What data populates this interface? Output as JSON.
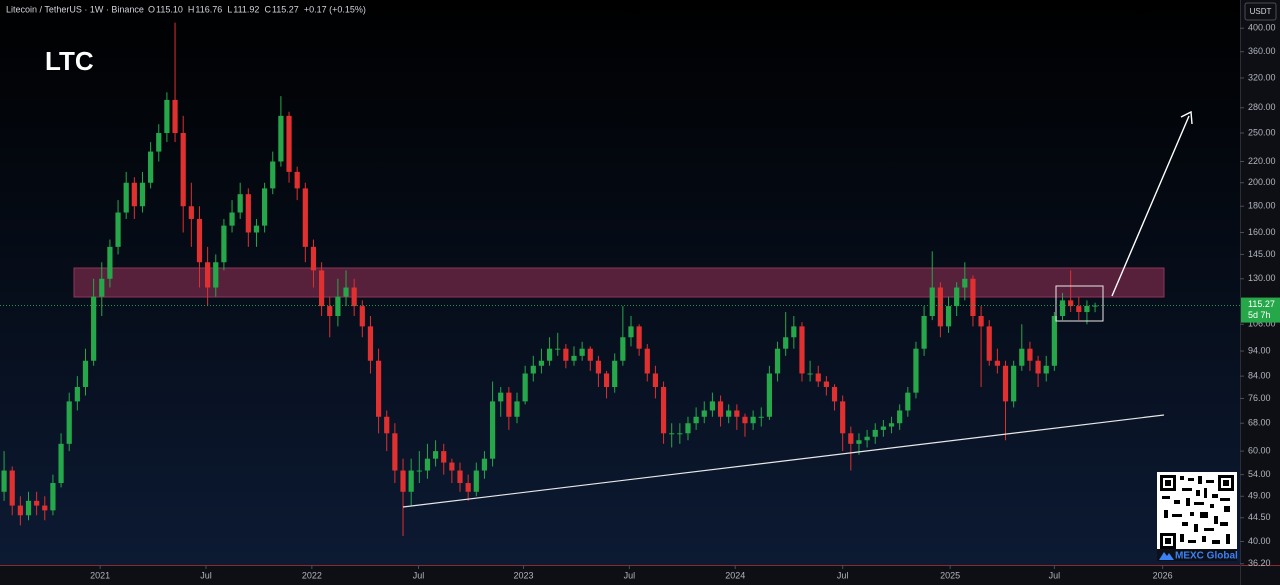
{
  "chart_data": {
    "type": "candlestick",
    "symbol": "Litecoin / TetherUS · 1W · Binance",
    "ohlc_header": [
      {
        "label": "O",
        "value": "115.10"
      },
      {
        "label": "H",
        "value": "116.76"
      },
      {
        "label": "L",
        "value": "111.92"
      },
      {
        "label": "C",
        "value": "115.27"
      }
    ],
    "change": "+0.17 (+0.15%)",
    "annotation": "LTC",
    "currency": "USDT",
    "countdown": "5d 7h",
    "watermark": "MEXC Global",
    "log_scale": true,
    "up_color": "#26a84a",
    "down_color": "#e0302f",
    "ylim": [
      36,
      454
    ],
    "yticks": [
      {
        "value": 400,
        "label": "400.00"
      },
      {
        "value": 360,
        "label": "360.00"
      },
      {
        "value": 320,
        "label": "320.00"
      },
      {
        "value": 280,
        "label": "280.00"
      },
      {
        "value": 250,
        "label": "250.00"
      },
      {
        "value": 220,
        "label": "220.00"
      },
      {
        "value": 200,
        "label": "200.00"
      },
      {
        "value": 180,
        "label": "180.00"
      },
      {
        "value": 160,
        "label": "160.00"
      },
      {
        "value": 145,
        "label": "145.00"
      },
      {
        "value": 130,
        "label": "130.00"
      },
      {
        "value": 106,
        "label": "106.00"
      },
      {
        "value": 94,
        "label": "94.00"
      },
      {
        "value": 84,
        "label": "84.00"
      },
      {
        "value": 76,
        "label": "76.00"
      },
      {
        "value": 68,
        "label": "68.00"
      },
      {
        "value": 60,
        "label": "60.00"
      },
      {
        "value": 54,
        "label": "54.00"
      },
      {
        "value": 49,
        "label": "49.00"
      },
      {
        "value": 44.5,
        "label": "44.50"
      },
      {
        "value": 40,
        "label": "40.00"
      },
      {
        "value": 36.2,
        "label": "36.20"
      }
    ],
    "xlim": [
      -0.5,
      151.8
    ],
    "xticks": [
      {
        "value": 11.8,
        "label": "2021"
      },
      {
        "value": 24.8,
        "label": "Jul"
      },
      {
        "value": 37.8,
        "label": "2022"
      },
      {
        "value": 50.9,
        "label": "Jul"
      },
      {
        "value": 63.8,
        "label": "2023"
      },
      {
        "value": 76.8,
        "label": "Jul"
      },
      {
        "value": 89.8,
        "label": "2024"
      },
      {
        "value": 103,
        "label": "Jul"
      },
      {
        "value": 116.2,
        "label": "2025"
      },
      {
        "value": 129,
        "label": "Jul"
      },
      {
        "value": 142.3,
        "label": "2026"
      }
    ],
    "candles": [
      [
        50,
        60,
        48,
        55
      ],
      [
        55,
        56,
        45,
        47
      ],
      [
        47,
        49,
        43,
        45
      ],
      [
        45,
        50,
        44,
        48
      ],
      [
        48,
        50,
        45,
        47
      ],
      [
        47,
        49,
        44,
        46
      ],
      [
        46,
        54,
        45,
        52
      ],
      [
        52,
        65,
        51,
        62
      ],
      [
        62,
        78,
        60,
        75
      ],
      [
        75,
        84,
        72,
        80
      ],
      [
        80,
        95,
        77,
        90
      ],
      [
        90,
        130,
        88,
        120
      ],
      [
        120,
        140,
        110,
        130
      ],
      [
        130,
        155,
        125,
        150
      ],
      [
        150,
        185,
        145,
        175
      ],
      [
        175,
        210,
        170,
        200
      ],
      [
        200,
        205,
        170,
        180
      ],
      [
        180,
        210,
        175,
        200
      ],
      [
        200,
        240,
        195,
        230
      ],
      [
        230,
        260,
        220,
        250
      ],
      [
        250,
        300,
        240,
        290
      ],
      [
        290,
        410,
        240,
        250
      ],
      [
        250,
        270,
        160,
        180
      ],
      [
        180,
        200,
        150,
        170
      ],
      [
        170,
        180,
        125,
        140
      ],
      [
        140,
        150,
        115,
        125
      ],
      [
        125,
        145,
        120,
        140
      ],
      [
        140,
        170,
        135,
        165
      ],
      [
        165,
        185,
        160,
        175
      ],
      [
        175,
        200,
        170,
        190
      ],
      [
        190,
        195,
        150,
        160
      ],
      [
        160,
        170,
        150,
        165
      ],
      [
        165,
        200,
        160,
        195
      ],
      [
        195,
        230,
        190,
        220
      ],
      [
        220,
        295,
        215,
        270
      ],
      [
        270,
        275,
        200,
        210
      ],
      [
        210,
        215,
        185,
        195
      ],
      [
        195,
        200,
        140,
        150
      ],
      [
        150,
        155,
        125,
        135
      ],
      [
        135,
        140,
        110,
        115
      ],
      [
        115,
        120,
        100,
        110
      ],
      [
        110,
        130,
        105,
        120
      ],
      [
        120,
        135,
        115,
        125
      ],
      [
        125,
        130,
        110,
        115
      ],
      [
        115,
        118,
        100,
        105
      ],
      [
        105,
        110,
        85,
        90
      ],
      [
        90,
        95,
        65,
        70
      ],
      [
        70,
        72,
        60,
        65
      ],
      [
        65,
        68,
        52,
        55
      ],
      [
        55,
        58,
        41,
        50
      ],
      [
        50,
        58,
        47,
        55
      ],
      [
        55,
        60,
        52,
        55
      ],
      [
        55,
        62,
        53,
        58
      ],
      [
        58,
        63,
        56,
        60
      ],
      [
        60,
        62,
        54,
        57
      ],
      [
        57,
        58,
        52,
        55
      ],
      [
        55,
        57,
        50,
        52
      ],
      [
        52,
        54,
        48,
        50
      ],
      [
        50,
        57,
        49,
        55
      ],
      [
        55,
        60,
        53,
        58
      ],
      [
        58,
        82,
        56,
        75
      ],
      [
        75,
        80,
        70,
        78
      ],
      [
        78,
        80,
        66,
        70
      ],
      [
        70,
        78,
        68,
        75
      ],
      [
        75,
        88,
        74,
        85
      ],
      [
        85,
        92,
        82,
        88
      ],
      [
        88,
        95,
        85,
        90
      ],
      [
        90,
        100,
        88,
        95
      ],
      [
        95,
        102,
        92,
        95
      ],
      [
        95,
        97,
        87,
        90
      ],
      [
        90,
        96,
        88,
        92
      ],
      [
        92,
        98,
        90,
        95
      ],
      [
        95,
        96,
        86,
        90
      ],
      [
        90,
        92,
        80,
        85
      ],
      [
        85,
        86,
        76,
        80
      ],
      [
        80,
        93,
        78,
        90
      ],
      [
        90,
        115,
        88,
        100
      ],
      [
        100,
        110,
        96,
        105
      ],
      [
        105,
        106,
        92,
        95
      ],
      [
        95,
        97,
        82,
        85
      ],
      [
        85,
        88,
        76,
        80
      ],
      [
        80,
        82,
        62,
        65
      ],
      [
        65,
        68,
        61,
        65
      ],
      [
        65,
        68,
        62,
        65
      ],
      [
        65,
        70,
        63,
        68
      ],
      [
        68,
        73,
        66,
        70
      ],
      [
        70,
        75,
        68,
        72
      ],
      [
        72,
        78,
        70,
        75
      ],
      [
        75,
        77,
        67,
        70
      ],
      [
        70,
        74,
        68,
        72
      ],
      [
        72,
        74,
        66,
        70
      ],
      [
        70,
        71,
        64,
        68
      ],
      [
        68,
        72,
        66,
        70
      ],
      [
        70,
        73,
        67,
        70
      ],
      [
        70,
        88,
        69,
        85
      ],
      [
        85,
        98,
        82,
        95
      ],
      [
        95,
        112,
        92,
        100
      ],
      [
        100,
        110,
        95,
        105
      ],
      [
        105,
        107,
        82,
        85
      ],
      [
        85,
        90,
        82,
        85
      ],
      [
        85,
        88,
        80,
        82
      ],
      [
        82,
        84,
        77,
        80
      ],
      [
        80,
        81,
        72,
        75
      ],
      [
        75,
        77,
        60,
        65
      ],
      [
        65,
        67,
        55,
        62
      ],
      [
        62,
        65,
        59,
        63
      ],
      [
        63,
        66,
        61,
        64
      ],
      [
        64,
        68,
        62,
        66
      ],
      [
        66,
        69,
        64,
        67
      ],
      [
        67,
        70,
        65,
        68
      ],
      [
        68,
        74,
        66,
        72
      ],
      [
        72,
        80,
        70,
        78
      ],
      [
        78,
        98,
        76,
        95
      ],
      [
        95,
        115,
        92,
        110
      ],
      [
        110,
        147,
        108,
        125
      ],
      [
        125,
        128,
        100,
        105
      ],
      [
        105,
        120,
        102,
        115
      ],
      [
        115,
        128,
        110,
        125
      ],
      [
        125,
        140,
        118,
        130
      ],
      [
        130,
        132,
        105,
        110
      ],
      [
        110,
        115,
        80,
        105
      ],
      [
        105,
        108,
        88,
        90
      ],
      [
        90,
        95,
        85,
        88
      ],
      [
        88,
        90,
        63,
        75
      ],
      [
        75,
        90,
        73,
        88
      ],
      [
        88,
        106,
        86,
        95
      ],
      [
        95,
        98,
        86,
        90
      ],
      [
        90,
        92,
        80,
        85
      ],
      [
        85,
        92,
        82,
        88
      ],
      [
        88,
        112,
        86,
        110
      ],
      [
        110,
        122,
        108,
        118
      ],
      [
        118,
        135,
        112,
        115
      ],
      [
        115,
        120,
        108,
        112
      ],
      [
        112,
        118,
        106,
        115.1
      ],
      [
        115.1,
        116.76,
        111.92,
        115.27
      ]
    ]
  }
}
